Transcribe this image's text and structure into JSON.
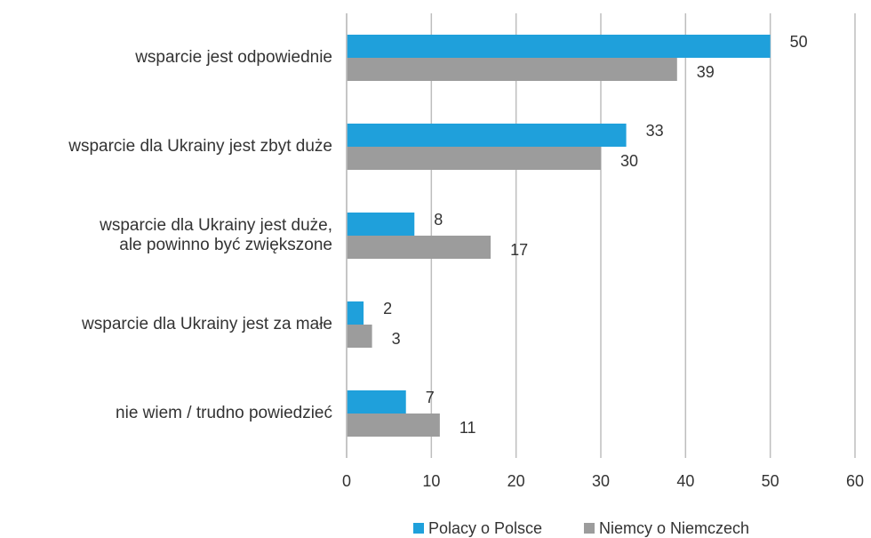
{
  "chart_data": {
    "type": "barh",
    "categories": [
      "wsparcie jest odpowiednie",
      "wsparcie dla Ukrainy jest zbyt duże",
      "wsparcie dla Ukrainy jest duże,\nale powinno być zwiększone",
      "wsparcie dla Ukrainy jest za małe",
      "nie wiem / trudno powiedzieć"
    ],
    "series": [
      {
        "name": "Polacy o Polsce",
        "color": "#1fa0db",
        "values": [
          50,
          33,
          8,
          2,
          7
        ]
      },
      {
        "name": "Niemcy o Niemczech",
        "color": "#9c9c9c",
        "values": [
          39,
          30,
          17,
          3,
          11
        ]
      }
    ],
    "xlim": [
      0,
      60
    ],
    "xticks": [
      0,
      10,
      20,
      30,
      40,
      50,
      60
    ],
    "grid": true,
    "legend": "bottom"
  }
}
